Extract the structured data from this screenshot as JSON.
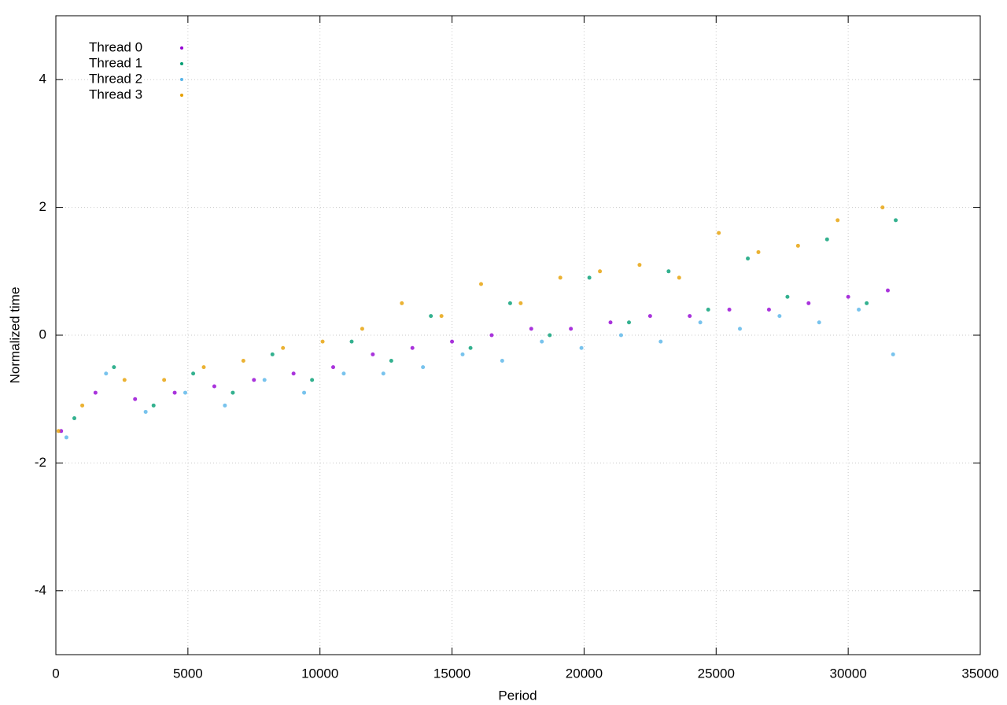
{
  "chart_data": {
    "type": "scatter",
    "x_label": "Period",
    "y_label": "Normalized time",
    "xlim": [
      0,
      35000
    ],
    "xticks": [
      0,
      5000,
      10000,
      15000,
      20000,
      25000,
      30000,
      35000
    ],
    "ylim": [
      -5,
      5
    ],
    "yticks": [
      -4,
      -2,
      0,
      2,
      4
    ],
    "grid": true,
    "legend": "top-left",
    "series": [
      {
        "name": "Thread 0",
        "color": "#9400d3",
        "x": [
          200,
          1500,
          3000,
          4500,
          6000,
          7500,
          9000,
          10500,
          12000,
          13500,
          15000,
          16500,
          18000,
          19500,
          21000,
          22500,
          24000,
          25500,
          27000,
          28500,
          30000,
          31500
        ],
        "values": [
          -1.5,
          -0.9,
          -1.0,
          -0.9,
          -0.8,
          -0.7,
          -0.6,
          -0.5,
          -0.3,
          -0.2,
          -0.1,
          0.0,
          0.1,
          0.1,
          0.2,
          0.3,
          0.3,
          0.4,
          0.4,
          0.5,
          0.6,
          0.7
        ]
      },
      {
        "name": "Thread 1",
        "color": "#009e73",
        "x": [
          700,
          2200,
          3700,
          5200,
          6700,
          8200,
          9700,
          11200,
          12700,
          14200,
          15700,
          17200,
          18700,
          20200,
          21700,
          23200,
          24700,
          26200,
          27700,
          29200,
          30700,
          31800
        ],
        "values": [
          -1.3,
          -0.5,
          -1.1,
          -0.6,
          -0.9,
          -0.3,
          -0.7,
          -0.1,
          -0.4,
          0.3,
          -0.2,
          0.5,
          0.0,
          0.9,
          0.2,
          1.0,
          0.4,
          1.2,
          0.6,
          1.5,
          0.5,
          1.8
        ]
      },
      {
        "name": "Thread 2",
        "color": "#56b4e9",
        "x": [
          400,
          1900,
          3400,
          4900,
          6400,
          7900,
          9400,
          10900,
          12400,
          13900,
          15400,
          16900,
          18400,
          19900,
          21400,
          22900,
          24400,
          25900,
          27400,
          28900,
          30400,
          31700
        ],
        "values": [
          -1.6,
          -0.6,
          -1.2,
          -0.9,
          -1.1,
          -0.7,
          -0.9,
          -0.6,
          -0.6,
          -0.5,
          -0.3,
          -0.4,
          -0.1,
          -0.2,
          0.0,
          -0.1,
          0.2,
          0.1,
          0.3,
          0.2,
          0.4,
          -0.3
        ]
      },
      {
        "name": "Thread 3",
        "color": "#e69f00",
        "x": [
          100,
          1000,
          2600,
          4100,
          5600,
          7100,
          8600,
          10100,
          11600,
          13100,
          14600,
          16100,
          17600,
          19100,
          20600,
          22100,
          23600,
          25100,
          26600,
          28100,
          29600,
          31300
        ],
        "values": [
          -1.5,
          -1.1,
          -0.7,
          -0.7,
          -0.5,
          -0.4,
          -0.2,
          -0.1,
          0.1,
          0.5,
          0.3,
          0.8,
          0.5,
          0.9,
          1.0,
          1.1,
          0.9,
          1.6,
          1.3,
          1.4,
          1.8,
          2.0
        ]
      }
    ]
  }
}
